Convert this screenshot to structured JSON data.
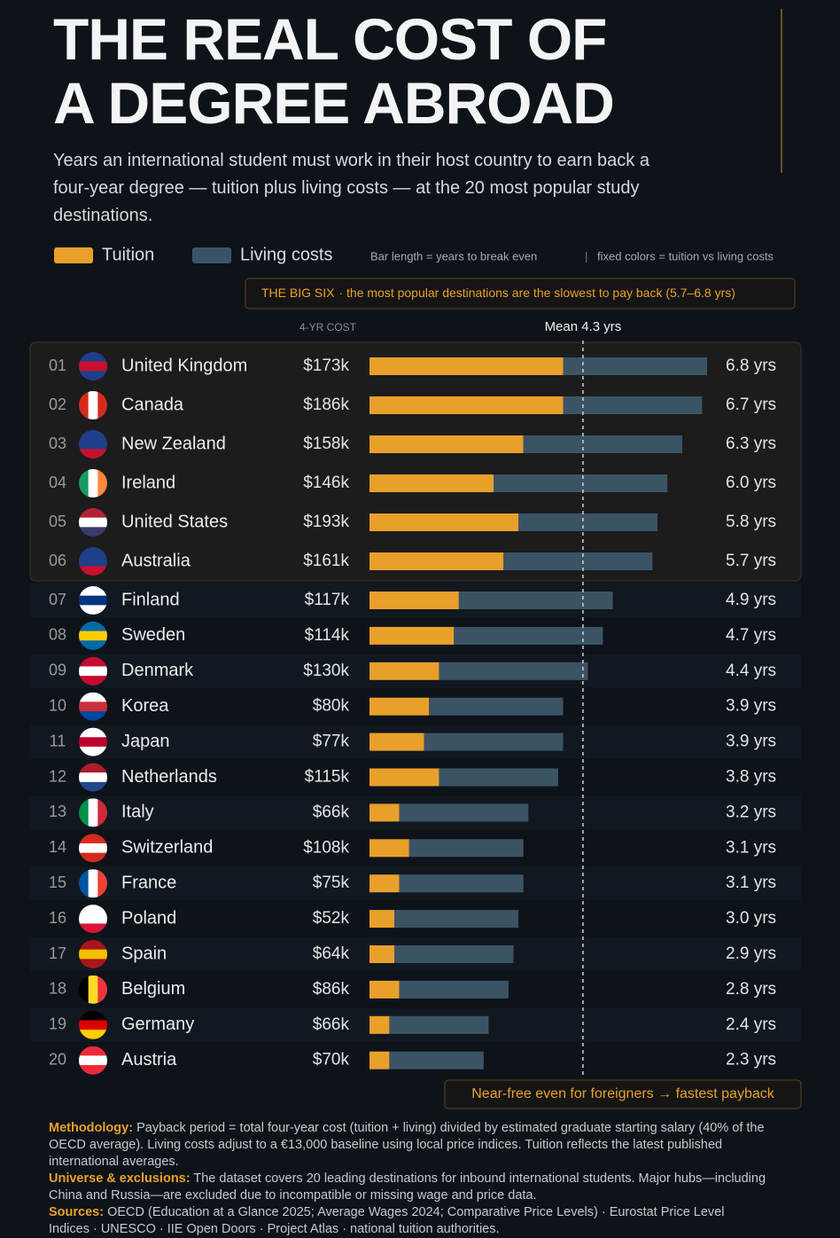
{
  "chart_data": {
    "type": "bar",
    "title_lines": [
      "THE REAL COST OF",
      "A DEGREE ABROAD"
    ],
    "subtitle": "Years an international student must work in their host country to earn back a four-year degree — tuition plus living costs — at the 20 most popular study destinations.",
    "legend_note": "Bar length = years to break even",
    "color_note": "fixed colors = tuition vs living costs",
    "cost_header": "4-YR COST",
    "highlight": {
      "title": "THE BIG SIX",
      "text": "· the most popular destinations are the slowest to pay back (5.7–6.8 yrs)"
    },
    "bottom_note": "Near-free even for foreigners → fastest payback",
    "mean": {
      "value": 4.3,
      "label": "Mean 4.3 yrs"
    },
    "ranks": [
      "01",
      "02",
      "03",
      "04",
      "05",
      "06",
      "07",
      "08",
      "09",
      "10",
      "11",
      "12",
      "13",
      "14",
      "15",
      "16",
      "17",
      "18",
      "19",
      "20"
    ],
    "categories": [
      "United Kingdom",
      "Canada",
      "New Zealand",
      "Ireland",
      "United States",
      "Australia",
      "Finland",
      "Sweden",
      "Denmark",
      "Korea",
      "Japan",
      "Netherlands",
      "Italy",
      "Switzerland",
      "France",
      "Poland",
      "Spain",
      "Belgium",
      "Germany",
      "Austria"
    ],
    "costs": [
      "$173k",
      "$186k",
      "$158k",
      "$146k",
      "$193k",
      "$161k",
      "$117k",
      "$114k",
      "$130k",
      "$80k",
      "$77k",
      "$115k",
      "$66k",
      "$108k",
      "$75k",
      "$52k",
      "$64k",
      "$86k",
      "$66k",
      "$70k"
    ],
    "series": [
      {
        "name": "Tuition",
        "color": "#e9a02a",
        "values": [
          3.9,
          3.9,
          3.1,
          2.5,
          3.0,
          2.7,
          1.8,
          1.7,
          1.4,
          1.2,
          1.1,
          1.4,
          0.6,
          0.8,
          0.6,
          0.5,
          0.5,
          0.6,
          0.4,
          0.4
        ]
      },
      {
        "name": "Living costs",
        "color": "#3b5465",
        "values": [
          2.9,
          2.8,
          3.2,
          3.5,
          2.8,
          3.0,
          3.1,
          3.0,
          3.0,
          2.7,
          2.8,
          2.4,
          2.6,
          2.3,
          2.5,
          2.5,
          2.4,
          2.2,
          2.0,
          1.9
        ]
      }
    ],
    "totals": {
      "values": [
        6.8,
        6.7,
        6.3,
        6.0,
        5.8,
        5.7,
        4.9,
        4.7,
        4.4,
        3.9,
        3.9,
        3.8,
        3.2,
        3.1,
        3.1,
        3.0,
        2.9,
        2.8,
        2.4,
        2.3
      ],
      "value_labels": [
        "6.8 yrs",
        "6.7 yrs",
        "6.3 yrs",
        "6.0 yrs",
        "5.8 yrs",
        "5.7 yrs",
        "4.9 yrs",
        "4.7 yrs",
        "4.4 yrs",
        "3.9 yrs",
        "3.9 yrs",
        "3.8 yrs",
        "3.2 yrs",
        "3.1 yrs",
        "3.1 yrs",
        "3.0 yrs",
        "2.9 yrs",
        "2.8 yrs",
        "2.4 yrs",
        "2.3 yrs"
      ]
    },
    "xlim": [
      0,
      6.8
    ],
    "notes": [
      {
        "label": "Methodology:",
        "text": "Payback period = total four-year cost (tuition + living) divided by estimated graduate starting salary (40% of the OECD average). Living costs adjust to a €13,000 baseline using local price indices. Tuition reflects the latest published international averages."
      },
      {
        "label": "Universe & exclusions:",
        "text": "The dataset covers 20 leading destinations for inbound international students. Major hubs—including China and Russia—are excluded due to incompatible or missing wage and price data."
      },
      {
        "label": "Sources:",
        "text": "OECD (Education at a Glance 2025; Average Wages 2024; Comparative Price Levels) · Eurostat Price Level Indices · UNESCO · IIE Open Doors · Project Atlas · national tuition authorities."
      }
    ]
  }
}
